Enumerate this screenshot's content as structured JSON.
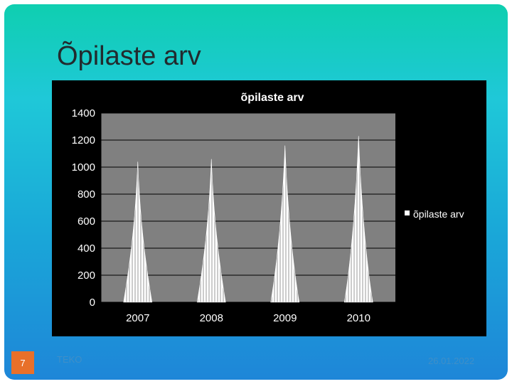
{
  "slide": {
    "title": "Õpilaste arv",
    "footer_left": "TEKO",
    "footer_date": "26.01.2022",
    "page_number": "7"
  },
  "chart_data": {
    "type": "bar",
    "title": "õpilaste arv",
    "categories": [
      "2007",
      "2008",
      "2009",
      "2010"
    ],
    "series": [
      {
        "name": "õpilaste arv",
        "values": [
          1040,
          1060,
          1160,
          1230
        ]
      }
    ],
    "ylim": [
      0,
      1400
    ],
    "yticks": [
      0,
      200,
      400,
      600,
      800,
      1000,
      1200,
      1400
    ],
    "grid": true,
    "legend": "right",
    "colors": {
      "background": "#000000",
      "plot_area": "#808080",
      "bar": "#ffffff"
    }
  }
}
